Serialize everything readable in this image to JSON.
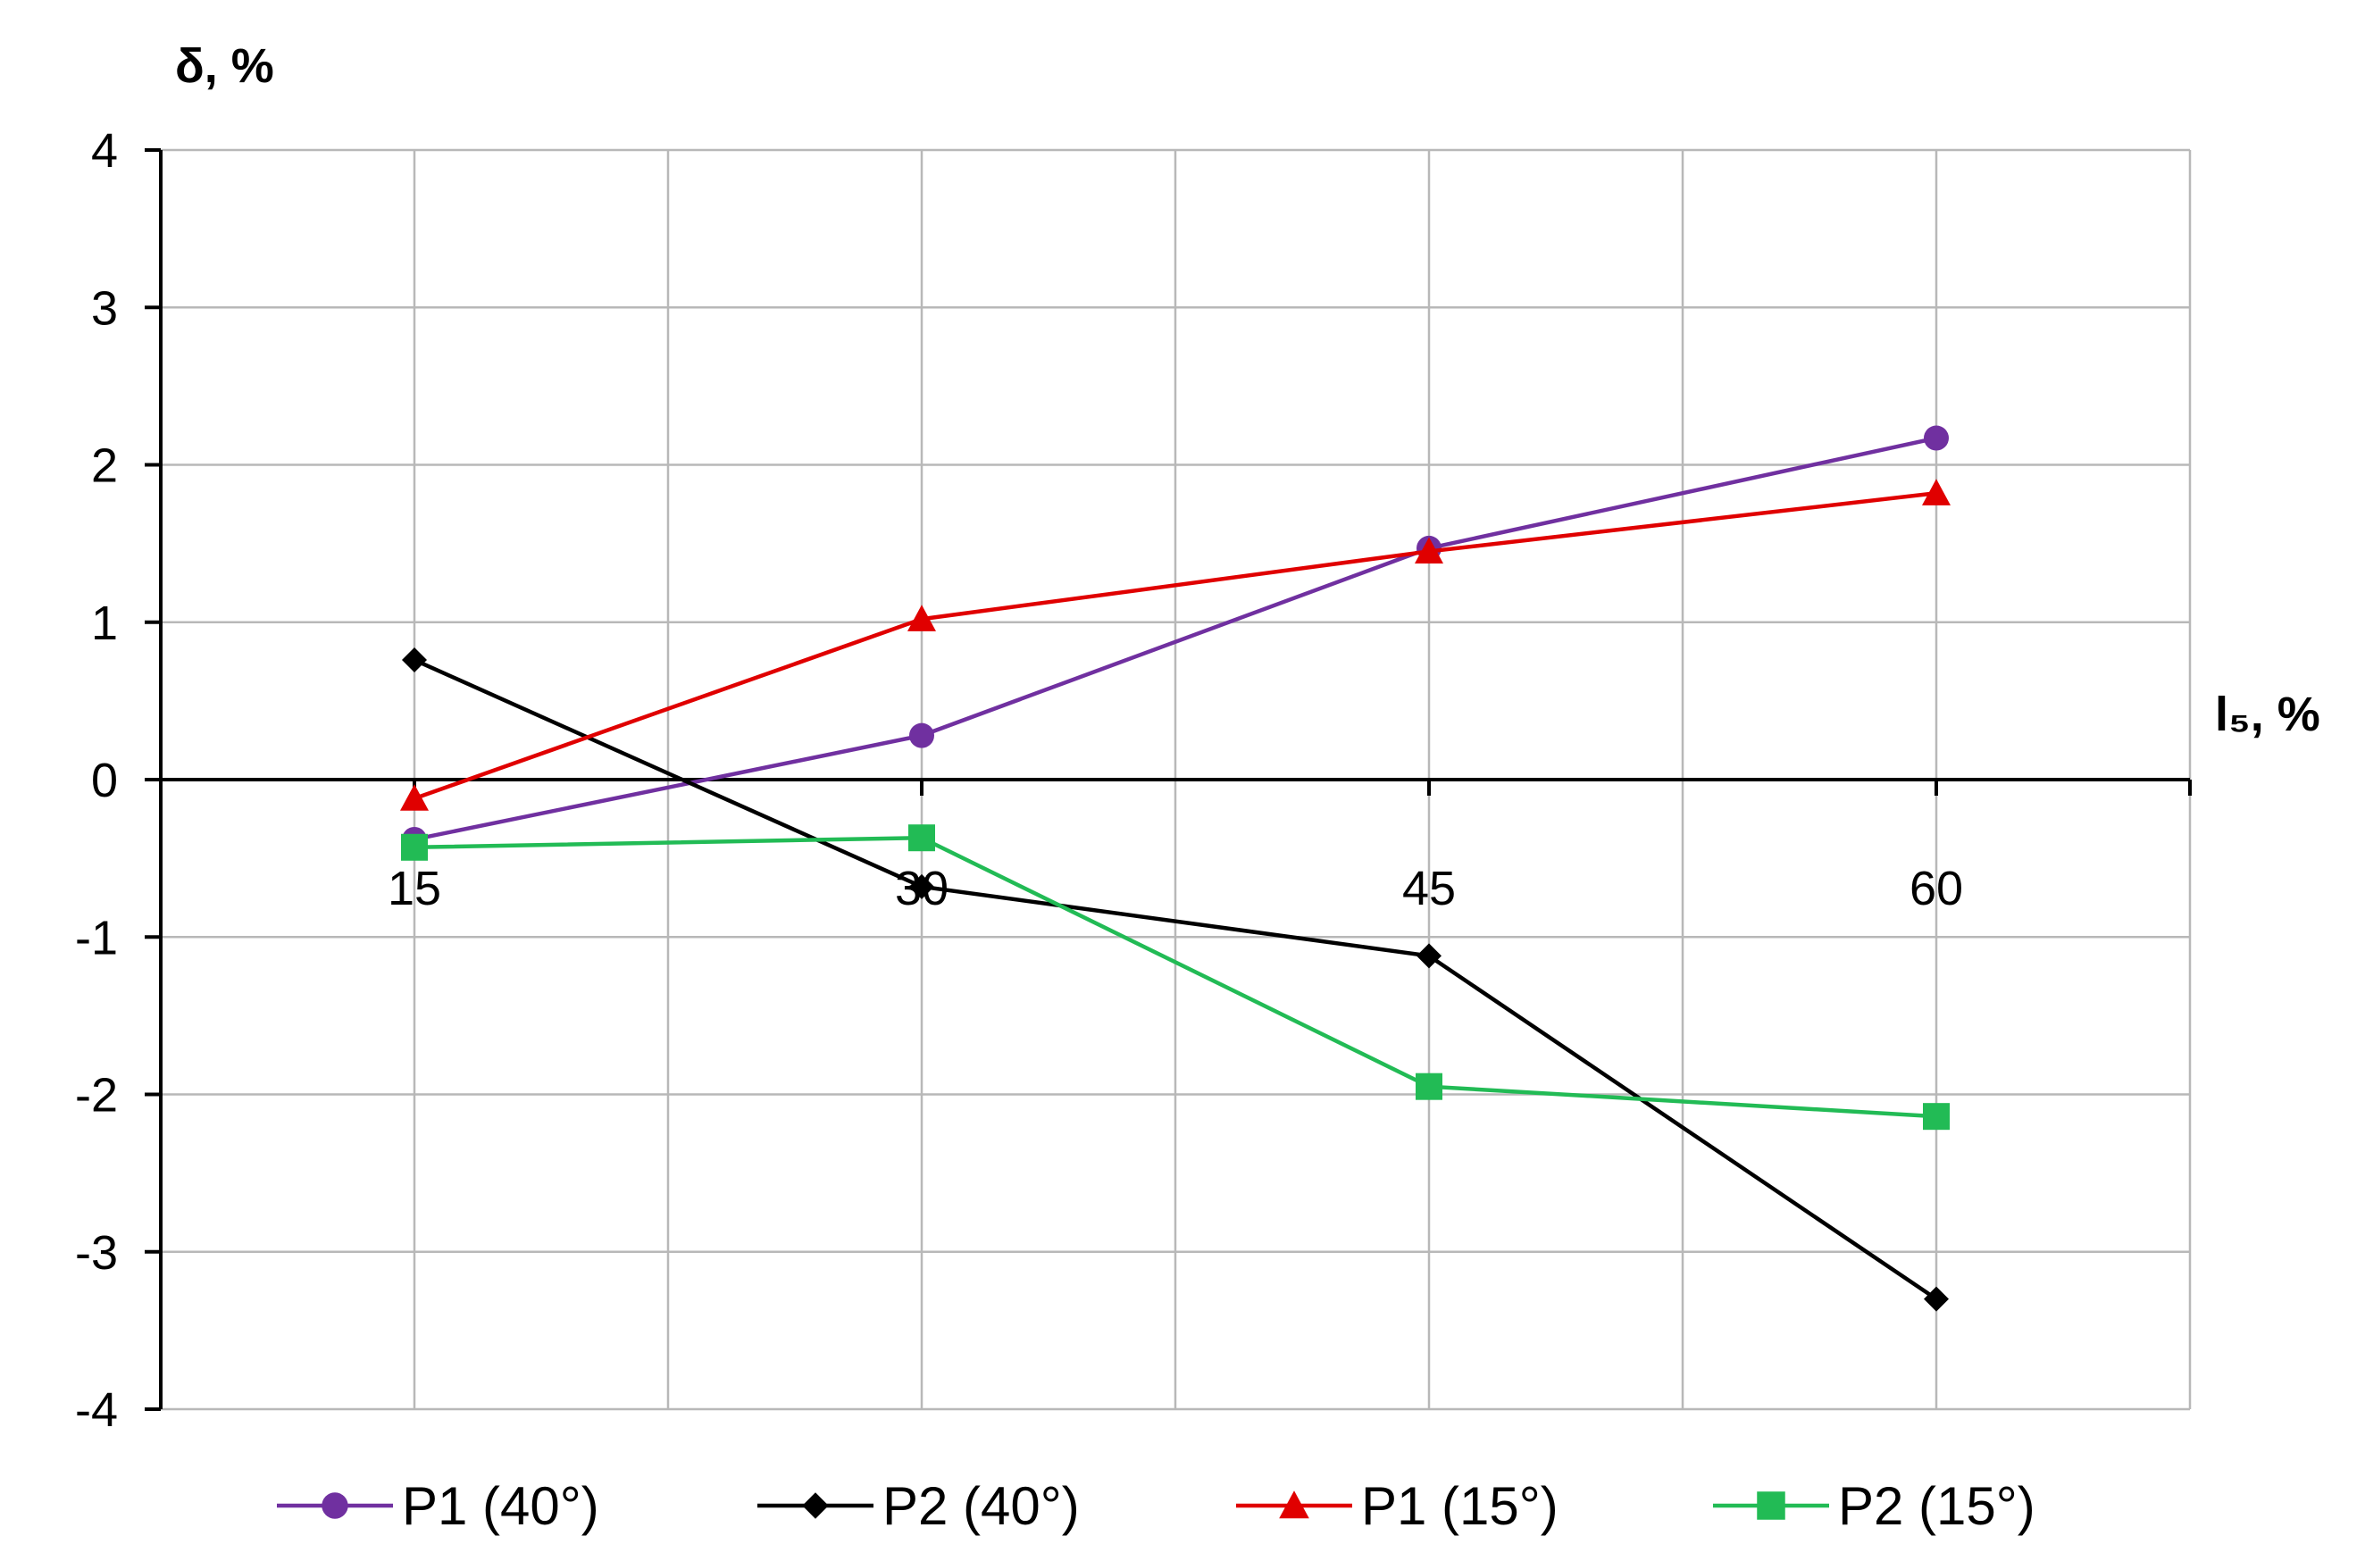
{
  "chart_data": {
    "type": "line",
    "xlabel": "l₅, %",
    "ylabel": "δ, %",
    "x": [
      15,
      30,
      45,
      60
    ],
    "x_tick_labels": [
      "15",
      "30",
      "45",
      "60"
    ],
    "y_tick_labels": [
      "4",
      "3",
      "2",
      "1",
      "0",
      "-1",
      "-2",
      "-3",
      "-4"
    ],
    "xlim": [
      7.5,
      67.5
    ],
    "ylim": [
      -4,
      4
    ],
    "grid": true,
    "legend_position": "bottom",
    "series": [
      {
        "name": "P1 (40°)",
        "values": [
          -0.38,
          0.28,
          1.47,
          2.17
        ],
        "color": "#7030a0",
        "marker": "circle"
      },
      {
        "name": "P2 (40°)",
        "values": [
          0.76,
          -0.68,
          -1.12,
          -3.3
        ],
        "color": "#000000",
        "marker": "diamond"
      },
      {
        "name": "P1 (15°)",
        "values": [
          -0.12,
          1.02,
          1.45,
          1.82
        ],
        "color": "#e00000",
        "marker": "triangle"
      },
      {
        "name": "P2 (15°)",
        "values": [
          -0.43,
          -0.37,
          -1.95,
          -2.14
        ],
        "color": "#22bb55",
        "marker": "square"
      }
    ]
  }
}
